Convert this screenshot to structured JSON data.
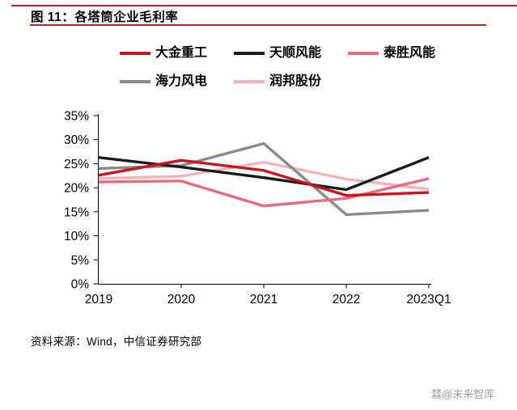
{
  "header": {
    "title": "图 11：各塔筒企业毛利率"
  },
  "accent_color": "#A52A2A",
  "chart_data": {
    "type": "line",
    "title": "各塔筒企业毛利率",
    "categories": [
      "2019",
      "2020",
      "2021",
      "2022",
      "2023Q1"
    ],
    "series": [
      {
        "name": "大金重工",
        "color": "#C9161D",
        "values": [
          22.6,
          25.7,
          23.6,
          18.4,
          19.0
        ]
      },
      {
        "name": "天顺风能",
        "color": "#1A1A1A",
        "values": [
          26.3,
          24.3,
          22.1,
          19.6,
          26.3
        ]
      },
      {
        "name": "泰胜风能",
        "color": "#E96A80",
        "values": [
          21.2,
          21.4,
          16.2,
          17.8,
          21.9
        ]
      },
      {
        "name": "海力风电",
        "color": "#8A8A8A",
        "values": [
          24.0,
          24.6,
          29.2,
          14.4,
          15.3
        ]
      },
      {
        "name": "润邦股份",
        "color": "#F4B3B8",
        "values": [
          21.9,
          22.4,
          25.3,
          21.8,
          19.7
        ]
      }
    ],
    "ylim": [
      0,
      35
    ],
    "ytick_step": 5,
    "ytick_suffix": "%",
    "legend_position": "top",
    "grid": false,
    "xlabel": "",
    "ylabel": ""
  },
  "source": {
    "text": "资料来源：Wind，中信证券研究部"
  },
  "watermark": {
    "text": "㵘@未来智库"
  }
}
